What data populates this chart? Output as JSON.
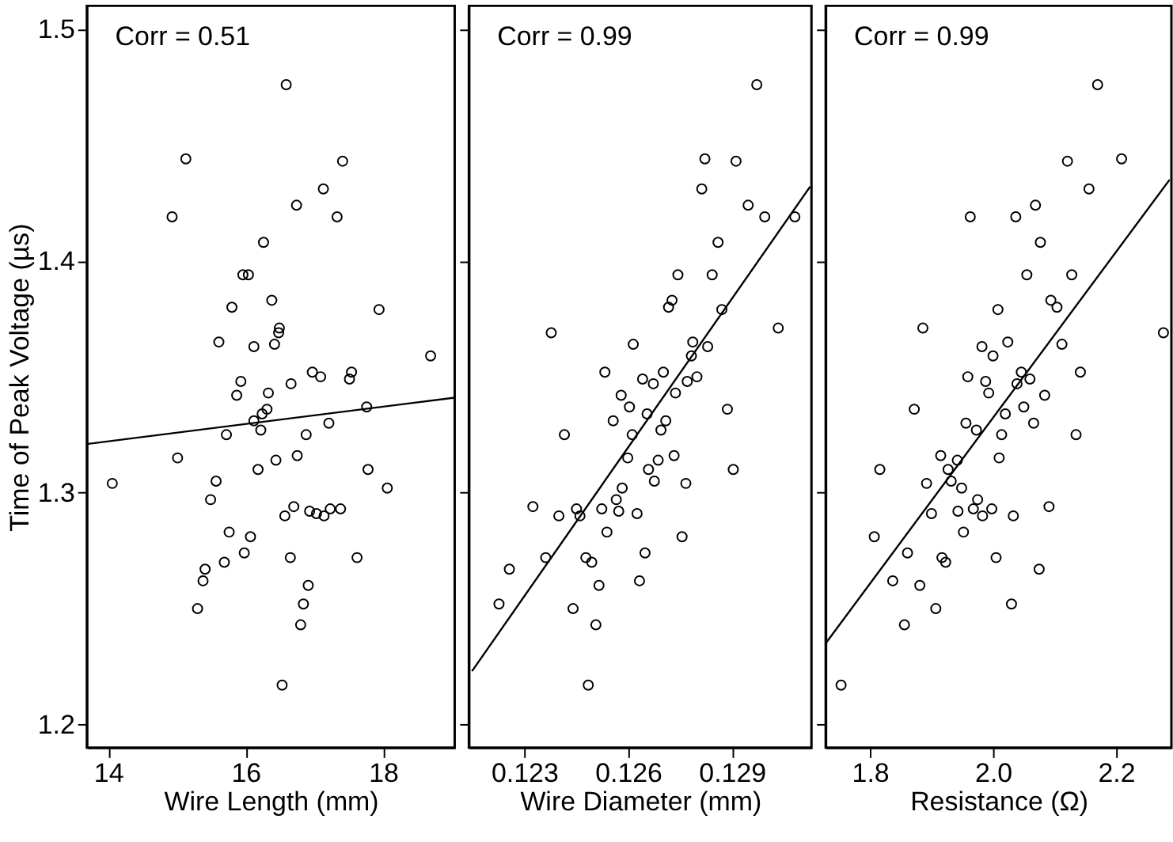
{
  "chart_data": [
    {
      "type": "scatter",
      "xlabel": "Wire Length (mm)",
      "ylabel": "Time of Peak Voltage (µs)",
      "xlim": [
        13.69,
        19.04
      ],
      "xticks": [
        14,
        16,
        18
      ],
      "ylim": [
        1.19,
        1.51
      ],
      "yticks": [
        1.2,
        1.3,
        1.4,
        1.5
      ],
      "annotations": [
        "Corr = 0.51"
      ],
      "series": [
        {
          "marker": "circle",
          "color": "#000000",
          "x": [
            16.59,
            15.13,
            17.41,
            17.13,
            16.74,
            14.93,
            17.33,
            16.26,
            15.96,
            16.04,
            16.38,
            15.8,
            17.94,
            16.49,
            16.48,
            15.61,
            16.12,
            16.42,
            18.69,
            16.97,
            17.09,
            17.54,
            17.51,
            16.66,
            15.93,
            16.33,
            15.87,
            16.31,
            16.24,
            16.12,
            16.22,
            17.76,
            17.21,
            15.72,
            16.88,
            15.01,
            16.75,
            16.44,
            16.18,
            17.78,
            14.06,
            15.57,
            18.06,
            15.49,
            16.7,
            16.93,
            16.57,
            17.03,
            17.14,
            17.23,
            17.38,
            15.76,
            16.07,
            15.98,
            15.69,
            16.65,
            17.62,
            15.41,
            15.38,
            15.3,
            16.91,
            16.84,
            16.8,
            16.53
          ],
          "values": [
            1.476,
            1.444,
            1.443,
            1.431,
            1.424,
            1.419,
            1.419,
            1.408,
            1.394,
            1.394,
            1.383,
            1.38,
            1.379,
            1.371,
            1.369,
            1.365,
            1.363,
            1.364,
            1.359,
            1.352,
            1.35,
            1.352,
            1.349,
            1.347,
            1.348,
            1.343,
            1.342,
            1.336,
            1.334,
            1.331,
            1.327,
            1.337,
            1.33,
            1.325,
            1.325,
            1.315,
            1.316,
            1.314,
            1.31,
            1.31,
            1.304,
            1.305,
            1.302,
            1.297,
            1.294,
            1.292,
            1.29,
            1.291,
            1.29,
            1.293,
            1.293,
            1.283,
            1.281,
            1.274,
            1.27,
            1.272,
            1.272,
            1.267,
            1.262,
            1.25,
            1.26,
            1.252,
            1.243,
            1.217
          ]
        },
        {
          "type": "line",
          "color": "#000000",
          "x": [
            13.69,
            19.04
          ],
          "values": [
            1.321,
            1.341
          ]
        }
      ]
    },
    {
      "type": "scatter",
      "xlabel": "Wire Diameter (mm)",
      "xlim": [
        0.1214,
        0.1313
      ],
      "xticks": [
        0.123,
        0.126,
        0.129
      ],
      "ylim": [
        1.19,
        1.51
      ],
      "yticks": [
        1.2,
        1.3,
        1.4,
        1.5
      ],
      "tick_labels": "x",
      "annotations": [
        "Corr = 0.99"
      ],
      "series": [
        {
          "marker": "circle",
          "color": "#000000",
          "x": [
            0.12972,
            0.12822,
            0.12912,
            0.12813,
            0.12947,
            0.12995,
            0.13082,
            0.1286,
            0.12744,
            0.12843,
            0.12727,
            0.12717,
            0.12871,
            0.13034,
            0.12378,
            0.12787,
            0.12615,
            0.12783,
            0.1283,
            0.12533,
            0.12702,
            0.12642,
            0.12673,
            0.12771,
            0.12799,
            0.12737,
            0.1258,
            0.12604,
            0.12887,
            0.12655,
            0.12709,
            0.12557,
            0.12695,
            0.12612,
            0.12416,
            0.12733,
            0.12599,
            0.12687,
            0.12659,
            0.12904,
            0.12676,
            0.12767,
            0.12583,
            0.12566,
            0.12325,
            0.12451,
            0.12524,
            0.12573,
            0.124,
            0.12461,
            0.12626,
            0.12539,
            0.12756,
            0.12362,
            0.12649,
            0.12478,
            0.12495,
            0.12257,
            0.12633,
            0.12516,
            0.12227,
            0.12441,
            0.12507,
            0.12485
          ],
          "values": [
            1.476,
            1.444,
            1.443,
            1.431,
            1.424,
            1.419,
            1.419,
            1.408,
            1.394,
            1.394,
            1.383,
            1.38,
            1.379,
            1.371,
            1.369,
            1.365,
            1.364,
            1.359,
            1.363,
            1.352,
            1.352,
            1.349,
            1.347,
            1.348,
            1.35,
            1.343,
            1.342,
            1.337,
            1.336,
            1.334,
            1.331,
            1.331,
            1.327,
            1.325,
            1.325,
            1.316,
            1.315,
            1.314,
            1.31,
            1.31,
            1.305,
            1.304,
            1.302,
            1.297,
            1.294,
            1.293,
            1.293,
            1.292,
            1.29,
            1.29,
            1.291,
            1.283,
            1.281,
            1.272,
            1.274,
            1.272,
            1.27,
            1.267,
            1.262,
            1.26,
            1.252,
            1.25,
            1.243,
            1.217
          ]
        },
        {
          "type": "line",
          "color": "#000000",
          "x": [
            0.12149,
            0.13126
          ],
          "values": [
            1.223,
            1.432
          ]
        }
      ]
    },
    {
      "type": "scatter",
      "xlabel": "Resistance (Ω)",
      "xlim": [
        1.728,
        2.29
      ],
      "xticks": [
        1.8,
        {
          "value": 2,
          "label": "2.0"
        },
        2.2
      ],
      "ylim": [
        1.19,
        1.51
      ],
      "yticks": [
        1.2,
        1.3,
        1.4,
        1.5
      ],
      "tick_labels": "x",
      "annotations": [
        "Corr = 0.99"
      ],
      "series": [
        {
          "marker": "circle",
          "color": "#000000",
          "x": [
            2.17,
            2.121,
            2.209,
            2.156,
            2.069,
            1.963,
            2.037,
            2.077,
            2.055,
            2.128,
            2.094,
            2.104,
            2.008,
            1.886,
            2.277,
            2.024,
            2.112,
            1.982,
            2.0,
            2.046,
            2.142,
            1.959,
            2.06,
            1.988,
            2.039,
            1.993,
            2.084,
            1.872,
            2.05,
            2.02,
            1.956,
            2.066,
            1.973,
            2.014,
            2.135,
            1.915,
            2.01,
            1.942,
            1.816,
            1.927,
            1.932,
            1.892,
            1.949,
            1.975,
            2.091,
            1.943,
            1.968,
            1.998,
            1.9,
            1.983,
            2.033,
            1.952,
            1.807,
            1.861,
            2.005,
            1.917,
            1.923,
            2.075,
            1.837,
            1.881,
            2.03,
            1.907,
            1.856,
            1.753
          ],
          "values": [
            1.476,
            1.443,
            1.444,
            1.431,
            1.424,
            1.419,
            1.419,
            1.408,
            1.394,
            1.394,
            1.383,
            1.38,
            1.379,
            1.371,
            1.369,
            1.365,
            1.364,
            1.363,
            1.359,
            1.352,
            1.352,
            1.35,
            1.349,
            1.348,
            1.347,
            1.343,
            1.342,
            1.336,
            1.337,
            1.334,
            1.33,
            1.33,
            1.327,
            1.325,
            1.325,
            1.316,
            1.315,
            1.314,
            1.31,
            1.31,
            1.305,
            1.304,
            1.302,
            1.297,
            1.294,
            1.292,
            1.293,
            1.293,
            1.291,
            1.29,
            1.29,
            1.283,
            1.281,
            1.274,
            1.272,
            1.272,
            1.27,
            1.267,
            1.262,
            1.26,
            1.252,
            1.25,
            1.243,
            1.217
          ]
        },
        {
          "type": "line",
          "color": "#000000",
          "x": [
            1.728,
            2.287
          ],
          "values": [
            1.235,
            1.435
          ]
        }
      ]
    }
  ]
}
